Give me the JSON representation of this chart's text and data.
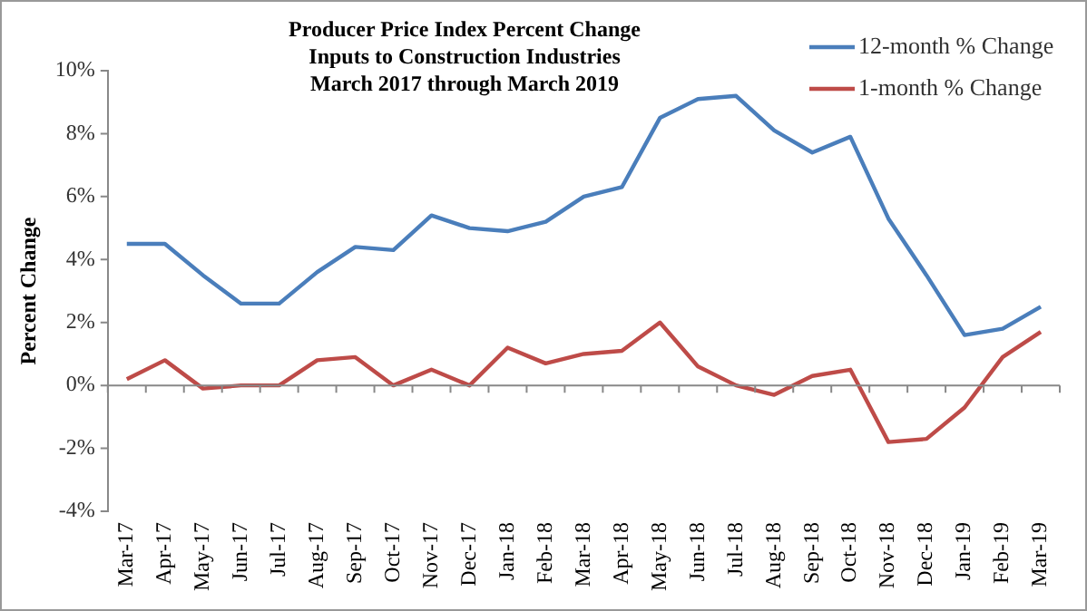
{
  "chart_data": {
    "type": "line",
    "title": "Producer Price Index Percent Change\nInputs to Construction Industries\nMarch 2017 through March 2019",
    "ylabel": "Percent Change",
    "categories": [
      "Mar-17",
      "Apr-17",
      "May-17",
      "Jun-17",
      "Jul-17",
      "Aug-17",
      "Sep-17",
      "Oct-17",
      "Nov-17",
      "Dec-17",
      "Jan-18",
      "Feb-18",
      "Mar-18",
      "Apr-18",
      "May-18",
      "Jun-18",
      "Jul-18",
      "Aug-18",
      "Sep-18",
      "Oct-18",
      "Nov-18",
      "Dec-18",
      "Jan-19",
      "Feb-19",
      "Mar-19"
    ],
    "series": [
      {
        "name": "12-month % Change",
        "color": "#4a7ebb",
        "values": [
          4.5,
          4.5,
          3.5,
          2.6,
          2.6,
          3.6,
          4.4,
          4.3,
          5.4,
          5.0,
          4.9,
          5.2,
          6.0,
          6.3,
          8.5,
          9.1,
          9.2,
          8.1,
          7.4,
          7.9,
          5.3,
          3.5,
          1.6,
          1.8,
          2.5
        ]
      },
      {
        "name": "1-month % Change",
        "color": "#be4b48",
        "values": [
          0.2,
          0.8,
          -0.1,
          0.0,
          0.0,
          0.8,
          0.9,
          0.0,
          0.5,
          0.0,
          1.2,
          0.7,
          1.0,
          1.1,
          2.0,
          0.6,
          0.0,
          -0.3,
          0.3,
          0.5,
          -1.8,
          -1.7,
          -0.7,
          0.9,
          1.7
        ]
      }
    ],
    "ylim": [
      -4,
      10
    ],
    "yticks": [
      {
        "value": -4,
        "label": "-4%"
      },
      {
        "value": -2,
        "label": "-2%"
      },
      {
        "value": 0,
        "label": "0%"
      },
      {
        "value": 2,
        "label": "2%"
      },
      {
        "value": 4,
        "label": "4%"
      },
      {
        "value": 6,
        "label": "6%"
      },
      {
        "value": 8,
        "label": "8%"
      },
      {
        "value": 10,
        "label": "10%"
      }
    ],
    "ref_lines": [
      {
        "axis": "y",
        "value": 0,
        "color": "#888888"
      }
    ],
    "grid": false,
    "legend": "top right",
    "marker": "none",
    "line_style": "solid"
  }
}
